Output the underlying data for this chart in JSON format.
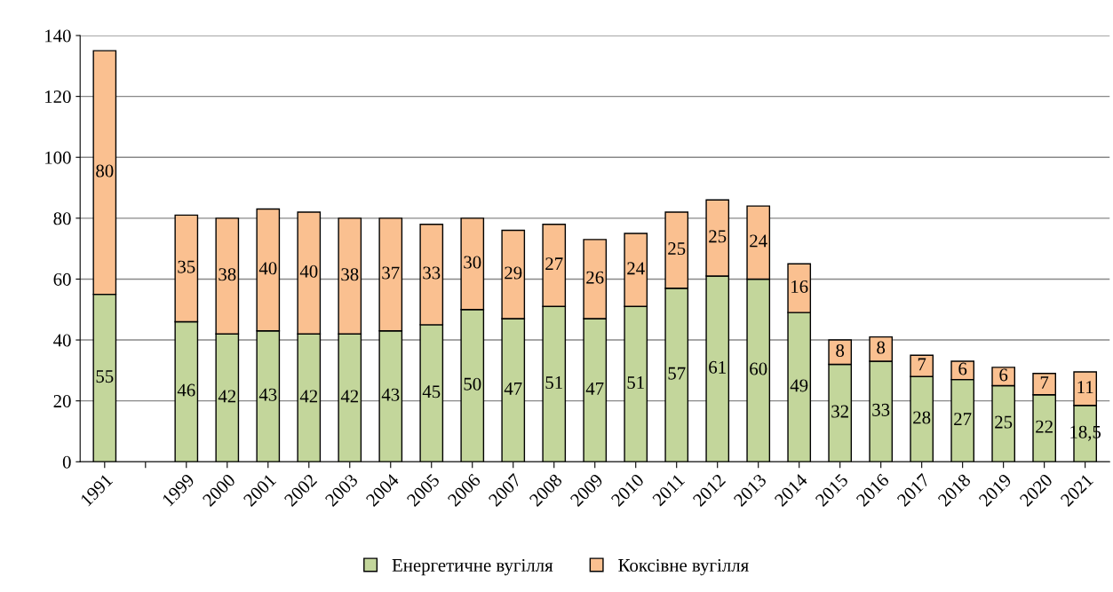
{
  "chart_data": {
    "type": "bar",
    "stacked": true,
    "categories": [
      "1991",
      null,
      "1999",
      "2000",
      "2001",
      "2002",
      "2003",
      "2004",
      "2005",
      "2006",
      "2007",
      "2008",
      "2009",
      "2010",
      "2011",
      "2012",
      "2013",
      "2014",
      "2015",
      "2016",
      "2017",
      "2018",
      "2019",
      "2020",
      "2021"
    ],
    "series": [
      {
        "name": "Енергетичне вугілля",
        "color": "#c3d69b",
        "values": [
          55,
          null,
          46,
          42,
          43,
          42,
          42,
          43,
          45,
          50,
          47,
          51,
          47,
          51,
          57,
          61,
          60,
          49,
          32,
          33,
          28,
          27,
          25,
          22,
          18.5
        ],
        "value_labels": [
          "55",
          null,
          "46",
          "42",
          "43",
          "42",
          "42",
          "43",
          "45",
          "50",
          "47",
          "51",
          "47",
          "51",
          "57",
          "61",
          "60",
          "49",
          "32",
          "33",
          "28",
          "27",
          "25",
          "22",
          "18,5"
        ]
      },
      {
        "name": "Коксівне вугілля",
        "color": "#fac090",
        "values": [
          80,
          null,
          35,
          38,
          40,
          40,
          38,
          37,
          33,
          30,
          29,
          27,
          26,
          24,
          25,
          25,
          24,
          16,
          8,
          8,
          7,
          6,
          6,
          7,
          11
        ],
        "value_labels": [
          "80",
          null,
          "35",
          "38",
          "40",
          "40",
          "38",
          "37",
          "33",
          "30",
          "29",
          "27",
          "26",
          "24",
          "25",
          "25",
          "24",
          "16",
          "8",
          "8",
          "7",
          "6",
          "6",
          "7",
          "11"
        ]
      }
    ],
    "ylim": [
      0,
      140
    ],
    "yticks": [
      0,
      20,
      40,
      60,
      80,
      100,
      120,
      140
    ],
    "grid": "y",
    "legend": "bottom"
  }
}
